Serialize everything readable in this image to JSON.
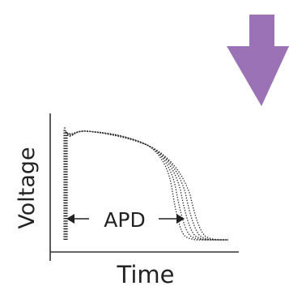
{
  "diagram": {
    "arrow_direction": "down",
    "arrow_color": "#9b72b5",
    "trace_color": "#2a2a2a",
    "axis_color": "#333333",
    "labels": {
      "y_axis": "Voltage",
      "x_axis": "Time",
      "interval": "APD"
    }
  }
}
